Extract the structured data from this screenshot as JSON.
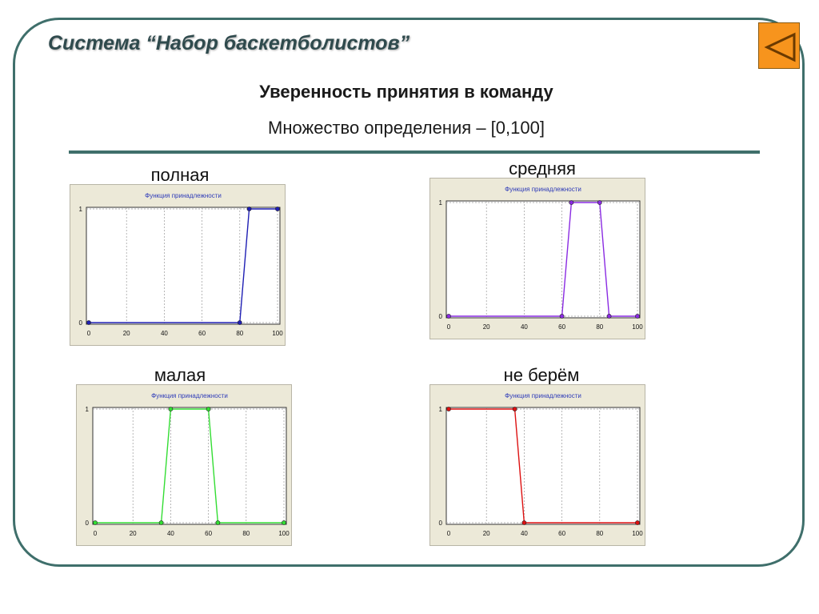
{
  "slide": {
    "title": "Система “Набор баскетболистов”",
    "heading": "Уверенность принятия в команду",
    "subheading": "Множество определения – [0,100]"
  },
  "nav": {
    "back_icon": "triangle-left-icon",
    "accent": "#f7941d"
  },
  "colors": {
    "frame": "#3f6f6b",
    "panel_bg": "#ece9d8",
    "plot_bg": "#ffffff"
  },
  "chart_data": [
    {
      "id": "polnaya",
      "label": "полная",
      "type": "line",
      "title": "Функция принадлежности",
      "color": "#1f1fb4",
      "xlim": [
        0,
        100
      ],
      "ylim": [
        0,
        1
      ],
      "xticks": [
        0,
        20,
        40,
        60,
        80,
        100
      ],
      "yticks": [
        0,
        1
      ],
      "grid": true,
      "points": [
        [
          0,
          0
        ],
        [
          80,
          0
        ],
        [
          85,
          1
        ],
        [
          100,
          1
        ]
      ]
    },
    {
      "id": "srednyaya",
      "label": "средняя",
      "type": "line",
      "title": "Функция принадлежности",
      "color": "#8a2be2",
      "xlim": [
        0,
        100
      ],
      "ylim": [
        0,
        1
      ],
      "xticks": [
        0,
        20,
        40,
        60,
        80,
        100
      ],
      "yticks": [
        0,
        1
      ],
      "grid": true,
      "points": [
        [
          0,
          0
        ],
        [
          60,
          0
        ],
        [
          65,
          1
        ],
        [
          80,
          1
        ],
        [
          85,
          0
        ],
        [
          100,
          0
        ]
      ]
    },
    {
      "id": "malaya",
      "label": "малая",
      "type": "line",
      "title": "Функция принадлежности",
      "color": "#33dd33",
      "xlim": [
        0,
        100
      ],
      "ylim": [
        0,
        1
      ],
      "xticks": [
        0,
        20,
        40,
        60,
        80,
        100
      ],
      "yticks": [
        0,
        1
      ],
      "grid": true,
      "points": [
        [
          0,
          0
        ],
        [
          35,
          0
        ],
        [
          40,
          1
        ],
        [
          60,
          1
        ],
        [
          65,
          0
        ],
        [
          100,
          0
        ]
      ]
    },
    {
      "id": "ne-berem",
      "label": "не берём",
      "type": "line",
      "title": "Функция принадлежности",
      "color": "#dd1111",
      "xlim": [
        0,
        100
      ],
      "ylim": [
        0,
        1
      ],
      "xticks": [
        0,
        20,
        40,
        60,
        80,
        100
      ],
      "yticks": [
        0,
        1
      ],
      "grid": true,
      "points": [
        [
          0,
          1
        ],
        [
          35,
          1
        ],
        [
          40,
          0
        ],
        [
          100,
          0
        ]
      ]
    }
  ]
}
